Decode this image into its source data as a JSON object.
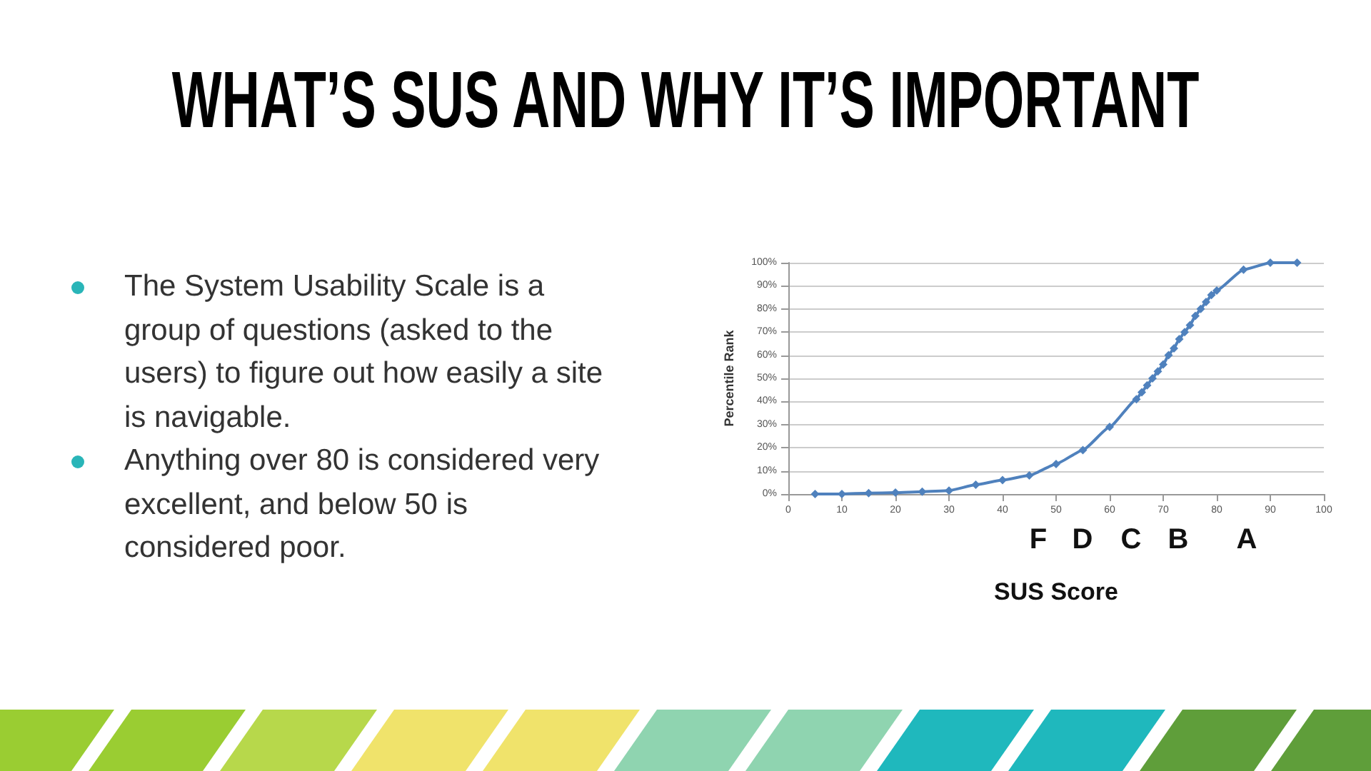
{
  "chart_data": {
    "type": "line",
    "title": "WHAT’S SUS AND WHY IT’S IMPORTANT",
    "annotations": [
      "The System Usability Scale is a group of questions (asked to the users) to figure out how easily a site is navigable.",
      "Anything over 80 is considered very excellent, and below 50 is considered poor.",
      "F",
      "D",
      "C",
      "B",
      "A"
    ],
    "xlabel": "SUS Score",
    "ylabel": "Percentile Rank",
    "x": [
      5,
      10,
      15,
      20,
      25,
      30,
      35,
      40,
      45,
      50,
      55,
      60,
      65,
      66,
      67,
      68,
      69,
      70,
      71,
      72,
      73,
      74,
      75,
      76,
      77,
      78,
      79,
      80,
      85,
      90,
      95
    ],
    "series": [
      {
        "color": "#4f81bd",
        "values": [
          0,
          0,
          0.4,
          0.6,
          1,
          1.5,
          4,
          6,
          8,
          13,
          19,
          29,
          41,
          44,
          47,
          50,
          53,
          56,
          60,
          63,
          67,
          70,
          73,
          77,
          80,
          83,
          86,
          88,
          97,
          100,
          100
        ]
      }
    ],
    "xlim": [
      0,
      100
    ],
    "xticks": [
      0,
      10,
      20,
      30,
      40,
      50,
      60,
      70,
      80,
      90,
      100
    ],
    "ylim": [
      0,
      100
    ],
    "yticks": [
      {
        "value": 0,
        "label": "0%"
      },
      {
        "value": 10,
        "label": "10%"
      },
      {
        "value": 20,
        "label": "20%"
      },
      {
        "value": 30,
        "label": "30%"
      },
      {
        "value": 40,
        "label": "40%"
      },
      {
        "value": 50,
        "label": "50%"
      },
      {
        "value": 60,
        "label": "60%"
      },
      {
        "value": 70,
        "label": "70%"
      },
      {
        "value": 80,
        "label": "80%"
      },
      {
        "value": 90,
        "label": "90%"
      },
      {
        "value": 100,
        "label": "100%"
      }
    ],
    "grid": "y",
    "marker": "diamond",
    "line_style": "solid"
  }
}
